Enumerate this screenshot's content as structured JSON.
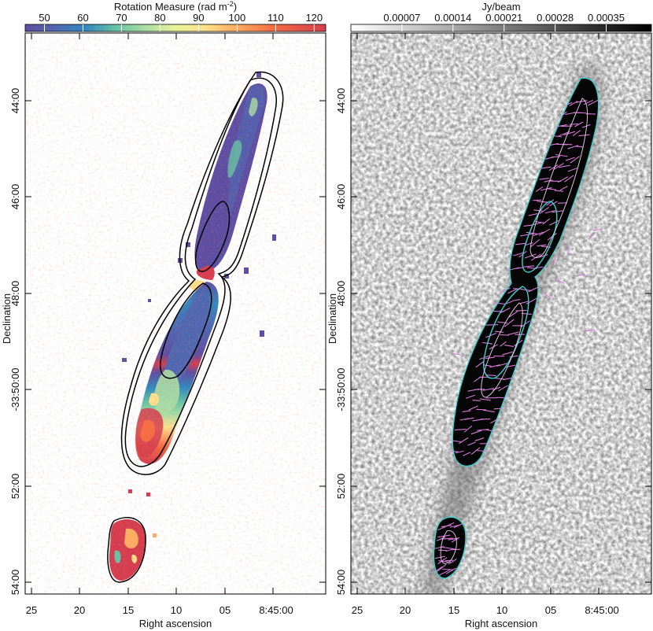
{
  "colors": {
    "frame": "#000000",
    "contour_black": "#000000",
    "contour_cyan": "#3ad0d0",
    "vectors_magenta": "#d77ad7",
    "source_fill": "#050505",
    "background": "#ffffff"
  },
  "chart_data": [
    {
      "type": "heatmap",
      "panel": "left",
      "title": "",
      "colorbar": {
        "label": "Rotation Measure (rad m",
        "label_superscript": "-2",
        "label_close": ")",
        "range": [
          45,
          123
        ],
        "ticks": [
          50,
          60,
          70,
          80,
          90,
          100,
          110,
          120
        ],
        "tick_labels": [
          "50",
          "60",
          "70",
          "80",
          "90",
          "100",
          "110",
          "120"
        ],
        "colormap": "spectral",
        "placement": "top"
      },
      "xlabel": "Right ascension",
      "ylabel": "Declination",
      "x_ticks": [
        "25",
        "20",
        "15",
        "10",
        "05",
        "8:45:00"
      ],
      "y_ticks": [
        "44:00",
        "46:00",
        "48:00",
        "-33:50:00",
        "52:00",
        "54:00"
      ],
      "contours": 3
    },
    {
      "type": "heatmap",
      "panel": "right",
      "title": "",
      "colorbar": {
        "label": "Jy/beam",
        "range": [
          0.0,
          0.000412
        ],
        "ticks": [
          7e-05,
          0.00014,
          0.00021,
          0.00028,
          0.00035
        ],
        "tick_labels": [
          "0.00007",
          "0.00014",
          "0.00021",
          "0.00028",
          "0.00035"
        ],
        "colormap": "greyscale",
        "placement": "top"
      },
      "xlabel": "Right ascension",
      "ylabel": "Declination",
      "x_ticks": [
        "25",
        "20",
        "15",
        "10",
        "05",
        "8:45:00"
      ],
      "y_ticks": [
        "44:00",
        "46:00",
        "48:00",
        "-33:50:00",
        "52:00",
        "54:00"
      ],
      "overlays": [
        "cyan contours",
        "magenta polarization vectors"
      ]
    }
  ]
}
